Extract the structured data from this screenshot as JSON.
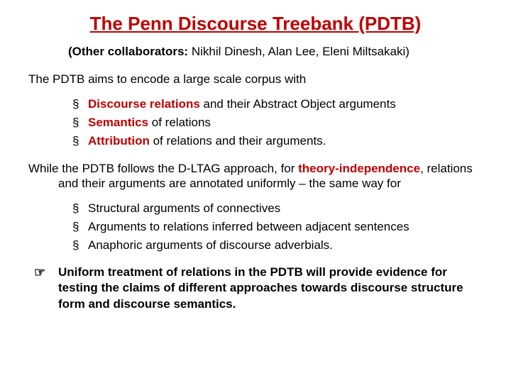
{
  "colors": {
    "accent": "#c00000",
    "text": "#000000",
    "background": "#ffffff"
  },
  "typography": {
    "title_fontsize": 26,
    "body_fontsize": 17,
    "family": "Arial"
  },
  "title": "The Penn Discourse Treebank (PDTB)",
  "subtitle": {
    "lead": "(Other collaborators:",
    "rest": " Nikhil Dinesh, Alan Lee, Eleni Miltsakaki)"
  },
  "intro": "The PDTB aims to encode a large scale corpus with",
  "list1": {
    "items": [
      {
        "kw": "Discourse relations",
        "rest": " and their Abstract Object arguments"
      },
      {
        "kw": "Semantics",
        "rest": " of relations"
      },
      {
        "kw": "Attribution",
        "rest": " of relations and their arguments."
      }
    ]
  },
  "mid": {
    "pre": "While the PDTB follows the D-LTAG approach, for ",
    "kw": "theory-independence",
    "post": ", relations and their arguments are annotated uniformly – the same way for"
  },
  "list2": {
    "items": [
      "Structural arguments of connectives",
      "Arguments to relations inferred between adjacent sentences",
      "Anaphoric arguments of discourse adverbials."
    ]
  },
  "final": {
    "symbol": "☞",
    "text": "Uniform treatment of relations in the PDTB will provide evidence for testing the claims of different approaches towards discourse structure form and discourse semantics."
  }
}
